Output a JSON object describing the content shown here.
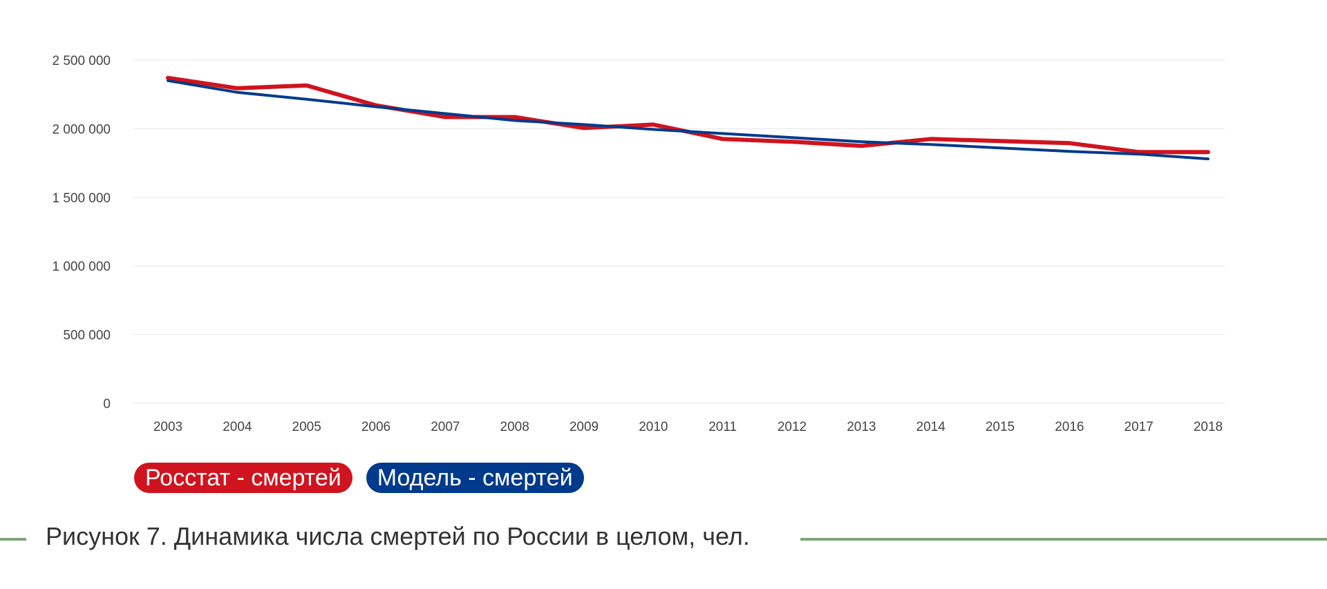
{
  "colors": {
    "rosstat": "#d0141f",
    "model": "#003a8c",
    "grid": "#e6e6e6",
    "rule": "#7ea57c"
  },
  "chart_data": {
    "type": "line",
    "title": "",
    "xlabel": "",
    "ylabel": "",
    "categories": [
      "2003",
      "2004",
      "2005",
      "2006",
      "2007",
      "2008",
      "2009",
      "2010",
      "2011",
      "2012",
      "2013",
      "2014",
      "2015",
      "2016",
      "2017",
      "2018"
    ],
    "ylim": [
      0,
      2500000
    ],
    "y_ticks": [
      0,
      500000,
      1000000,
      1500000,
      2000000,
      2500000
    ],
    "y_tick_labels": [
      "0",
      "500 000",
      "1 000 000",
      "1 500 000",
      "2 000 000",
      "2 500 000"
    ],
    "grid": true,
    "legend": "bottom-left",
    "series": [
      {
        "name": "Росстат - смертей",
        "color": "#d0141f",
        "values": [
          2370000,
          2295000,
          2315000,
          2170000,
          2085000,
          2085000,
          2005000,
          2030000,
          1925000,
          1905000,
          1875000,
          1925000,
          1910000,
          1895000,
          1830000,
          1830000
        ]
      },
      {
        "name": "Модель - смертей",
        "color": "#003a8c",
        "values": [
          2350000,
          2265000,
          2215000,
          2160000,
          2110000,
          2060000,
          2030000,
          1995000,
          1965000,
          1935000,
          1905000,
          1885000,
          1860000,
          1835000,
          1815000,
          1780000
        ]
      }
    ]
  },
  "legend": {
    "rosstat_label": "Росстат - смертей",
    "model_label": "Модель - смертей"
  },
  "caption": "Рисунок 7. Динамика числа смертей по России в целом, чел."
}
